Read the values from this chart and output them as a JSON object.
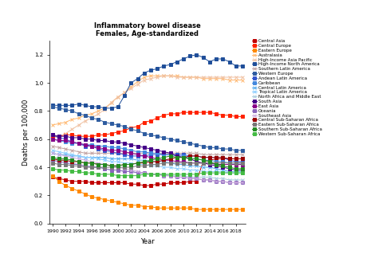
{
  "title_line1": "Inflammatory bowel disease",
  "title_line2": "Females, Age-standardized",
  "ylabel": "Deaths per 100,000",
  "xlabel": "Year",
  "years": [
    1990,
    1991,
    1992,
    1993,
    1994,
    1995,
    1996,
    1997,
    1998,
    1999,
    2000,
    2001,
    2002,
    2003,
    2004,
    2005,
    2006,
    2007,
    2008,
    2009,
    2010,
    2011,
    2012,
    2013,
    2014,
    2015,
    2016,
    2017,
    2018,
    2019
  ],
  "series": [
    {
      "name": "Central Asia",
      "color": "#c00000",
      "marker": "s",
      "values": [
        0.33,
        0.32,
        0.31,
        0.3,
        0.3,
        0.3,
        0.29,
        0.29,
        0.29,
        0.29,
        0.29,
        0.29,
        0.28,
        0.28,
        0.27,
        0.27,
        0.28,
        0.28,
        0.29,
        0.29,
        0.29,
        0.3,
        0.3,
        0.44,
        0.45,
        0.46,
        0.46,
        0.46,
        0.46,
        0.46
      ]
    },
    {
      "name": "Central Europe",
      "color": "#ff2200",
      "marker": "s",
      "values": [
        0.62,
        0.62,
        0.63,
        0.63,
        0.62,
        0.62,
        0.62,
        0.63,
        0.63,
        0.64,
        0.65,
        0.66,
        0.68,
        0.69,
        0.72,
        0.73,
        0.75,
        0.77,
        0.78,
        0.78,
        0.79,
        0.79,
        0.79,
        0.79,
        0.79,
        0.78,
        0.77,
        0.77,
        0.76,
        0.76
      ]
    },
    {
      "name": "Eastern Europe",
      "color": "#ff8800",
      "marker": "s",
      "values": [
        0.34,
        0.3,
        0.27,
        0.25,
        0.23,
        0.21,
        0.19,
        0.18,
        0.17,
        0.16,
        0.15,
        0.14,
        0.13,
        0.13,
        0.12,
        0.12,
        0.11,
        0.11,
        0.11,
        0.11,
        0.11,
        0.11,
        0.1,
        0.1,
        0.1,
        0.1,
        0.1,
        0.1,
        0.1,
        0.1
      ]
    },
    {
      "name": "Australasia",
      "color": "#ffb870",
      "marker": "x",
      "values": [
        0.7,
        0.71,
        0.72,
        0.74,
        0.75,
        0.77,
        0.78,
        0.8,
        0.82,
        0.86,
        0.9,
        0.93,
        0.97,
        1.01,
        1.04,
        1.05,
        1.05,
        1.05,
        1.05,
        1.05,
        1.04,
        1.04,
        1.04,
        1.03,
        1.03,
        1.03,
        1.03,
        1.02,
        1.02,
        1.02
      ]
    },
    {
      "name": "High-Income Asia Pacific",
      "color": "#f0c0a0",
      "marker": "x",
      "values": [
        0.6,
        0.62,
        0.64,
        0.67,
        0.7,
        0.73,
        0.75,
        0.78,
        0.81,
        0.86,
        0.9,
        0.93,
        0.96,
        0.99,
        1.02,
        1.03,
        1.04,
        1.05,
        1.05,
        1.04,
        1.04,
        1.04,
        1.04,
        1.04,
        1.04,
        1.04,
        1.04,
        1.04,
        1.04,
        1.04
      ]
    },
    {
      "name": "High-Income North America",
      "color": "#1f4e99",
      "marker": "s",
      "values": [
        0.84,
        0.84,
        0.84,
        0.84,
        0.85,
        0.84,
        0.83,
        0.83,
        0.82,
        0.82,
        0.83,
        0.91,
        1.0,
        1.03,
        1.07,
        1.09,
        1.1,
        1.12,
        1.13,
        1.15,
        1.17,
        1.19,
        1.2,
        1.18,
        1.15,
        1.17,
        1.17,
        1.15,
        1.12,
        1.12
      ]
    },
    {
      "name": "Southern Latin America",
      "color": "#c0a0a0",
      "marker": "x",
      "values": [
        0.55,
        0.54,
        0.53,
        0.52,
        0.51,
        0.5,
        0.5,
        0.5,
        0.5,
        0.5,
        0.5,
        0.5,
        0.5,
        0.5,
        0.5,
        0.5,
        0.5,
        0.5,
        0.5,
        0.5,
        0.5,
        0.5,
        0.5,
        0.49,
        0.49,
        0.49,
        0.49,
        0.49,
        0.49,
        0.49
      ]
    },
    {
      "name": "Western Europe",
      "color": "#2e5ca0",
      "marker": "s",
      "values": [
        0.83,
        0.82,
        0.81,
        0.8,
        0.78,
        0.77,
        0.75,
        0.74,
        0.72,
        0.71,
        0.7,
        0.69,
        0.67,
        0.66,
        0.64,
        0.63,
        0.62,
        0.61,
        0.6,
        0.59,
        0.58,
        0.57,
        0.56,
        0.55,
        0.54,
        0.54,
        0.53,
        0.53,
        0.52,
        0.52
      ]
    },
    {
      "name": "Andean Latin America",
      "color": "#3355cc",
      "marker": "s",
      "values": [
        0.63,
        0.61,
        0.6,
        0.58,
        0.57,
        0.55,
        0.55,
        0.53,
        0.52,
        0.51,
        0.5,
        0.49,
        0.48,
        0.48,
        0.48,
        0.49,
        0.49,
        0.49,
        0.49,
        0.49,
        0.49,
        0.48,
        0.48,
        0.47,
        0.47,
        0.47,
        0.47,
        0.45,
        0.44,
        0.44
      ]
    },
    {
      "name": "Caribbean",
      "color": "#4488dd",
      "marker": "s",
      "values": [
        0.6,
        0.59,
        0.58,
        0.57,
        0.57,
        0.56,
        0.56,
        0.55,
        0.55,
        0.54,
        0.54,
        0.53,
        0.52,
        0.51,
        0.51,
        0.5,
        0.5,
        0.49,
        0.49,
        0.48,
        0.48,
        0.46,
        0.46,
        0.45,
        0.45,
        0.44,
        0.44,
        0.43,
        0.43,
        0.43
      ]
    },
    {
      "name": "Central Latin America",
      "color": "#55aaee",
      "marker": "x",
      "values": [
        0.5,
        0.49,
        0.49,
        0.48,
        0.48,
        0.47,
        0.47,
        0.47,
        0.47,
        0.46,
        0.46,
        0.46,
        0.46,
        0.45,
        0.45,
        0.44,
        0.44,
        0.44,
        0.43,
        0.42,
        0.42,
        0.41,
        0.41,
        0.4,
        0.4,
        0.39,
        0.38,
        0.37,
        0.37,
        0.37
      ]
    },
    {
      "name": "Tropical Latin America",
      "color": "#88ccff",
      "marker": "x",
      "values": [
        0.52,
        0.51,
        0.5,
        0.49,
        0.48,
        0.47,
        0.47,
        0.46,
        0.45,
        0.44,
        0.44,
        0.43,
        0.43,
        0.42,
        0.42,
        0.41,
        0.41,
        0.4,
        0.4,
        0.39,
        0.39,
        0.38,
        0.38,
        0.37,
        0.37,
        0.37,
        0.37,
        0.36,
        0.36,
        0.36
      ]
    },
    {
      "name": "North Africa and Middle East",
      "color": "#aaccdd",
      "marker": "x",
      "values": [
        0.46,
        0.45,
        0.44,
        0.43,
        0.42,
        0.41,
        0.41,
        0.4,
        0.39,
        0.38,
        0.38,
        0.37,
        0.37,
        0.36,
        0.36,
        0.35,
        0.35,
        0.35,
        0.34,
        0.34,
        0.34,
        0.33,
        0.33,
        0.33,
        0.33,
        0.32,
        0.32,
        0.31,
        0.31,
        0.31
      ]
    },
    {
      "name": "South Asia",
      "color": "#440088",
      "marker": "s",
      "values": [
        0.63,
        0.62,
        0.62,
        0.61,
        0.61,
        0.6,
        0.6,
        0.59,
        0.59,
        0.58,
        0.58,
        0.57,
        0.56,
        0.55,
        0.54,
        0.53,
        0.52,
        0.51,
        0.5,
        0.48,
        0.47,
        0.46,
        0.44,
        0.43,
        0.42,
        0.41,
        0.4,
        0.39,
        0.38,
        0.38
      ]
    },
    {
      "name": "East Asia",
      "color": "#880088",
      "marker": "s",
      "values": [
        0.6,
        0.59,
        0.59,
        0.58,
        0.57,
        0.56,
        0.55,
        0.54,
        0.53,
        0.52,
        0.52,
        0.51,
        0.5,
        0.49,
        0.48,
        0.47,
        0.46,
        0.45,
        0.45,
        0.44,
        0.44,
        0.43,
        0.43,
        0.43,
        0.43,
        0.42,
        0.42,
        0.42,
        0.42,
        0.42
      ]
    },
    {
      "name": "Oceania",
      "color": "#8866bb",
      "marker": "s",
      "values": [
        0.45,
        0.44,
        0.43,
        0.42,
        0.42,
        0.41,
        0.4,
        0.4,
        0.39,
        0.38,
        0.38,
        0.37,
        0.37,
        0.36,
        0.36,
        0.35,
        0.35,
        0.34,
        0.34,
        0.33,
        0.33,
        0.32,
        0.32,
        0.31,
        0.31,
        0.3,
        0.3,
        0.29,
        0.29,
        0.29
      ]
    },
    {
      "name": "Southeast Asia",
      "color": "#ccaadd",
      "marker": "x",
      "values": [
        0.5,
        0.49,
        0.48,
        0.47,
        0.46,
        0.45,
        0.44,
        0.43,
        0.42,
        0.41,
        0.4,
        0.39,
        0.38,
        0.37,
        0.36,
        0.35,
        0.35,
        0.34,
        0.34,
        0.33,
        0.33,
        0.32,
        0.32,
        0.31,
        0.31,
        0.3,
        0.3,
        0.29,
        0.29,
        0.29
      ]
    },
    {
      "name": "Central Sub-Saharan Africa",
      "color": "#990000",
      "marker": "s",
      "values": [
        0.46,
        0.45,
        0.45,
        0.44,
        0.44,
        0.43,
        0.43,
        0.42,
        0.42,
        0.41,
        0.41,
        0.42,
        0.42,
        0.43,
        0.43,
        0.44,
        0.44,
        0.45,
        0.46,
        0.47,
        0.47,
        0.48,
        0.48,
        0.47,
        0.47,
        0.47,
        0.47,
        0.46,
        0.46,
        0.46
      ]
    },
    {
      "name": "Eastern Sub-Saharan Africa",
      "color": "#777777",
      "marker": "s",
      "values": [
        0.43,
        0.42,
        0.42,
        0.41,
        0.41,
        0.4,
        0.4,
        0.4,
        0.4,
        0.4,
        0.4,
        0.4,
        0.4,
        0.41,
        0.41,
        0.42,
        0.42,
        0.43,
        0.43,
        0.43,
        0.43,
        0.43,
        0.43,
        0.43,
        0.43,
        0.43,
        0.43,
        0.43,
        0.43,
        0.43
      ]
    },
    {
      "name": "Southern Sub-Saharan Africa",
      "color": "#228b22",
      "marker": "s",
      "values": [
        0.47,
        0.46,
        0.46,
        0.45,
        0.44,
        0.43,
        0.43,
        0.42,
        0.42,
        0.41,
        0.41,
        0.42,
        0.42,
        0.43,
        0.44,
        0.45,
        0.46,
        0.47,
        0.48,
        0.47,
        0.47,
        0.46,
        0.46,
        0.45,
        0.44,
        0.42,
        0.41,
        0.4,
        0.39,
        0.39
      ]
    },
    {
      "name": "Western Sub-Saharan Africa",
      "color": "#44bb44",
      "marker": "s",
      "values": [
        0.39,
        0.38,
        0.38,
        0.37,
        0.37,
        0.36,
        0.36,
        0.35,
        0.35,
        0.35,
        0.34,
        0.34,
        0.34,
        0.34,
        0.35,
        0.35,
        0.35,
        0.35,
        0.35,
        0.35,
        0.35,
        0.35,
        0.35,
        0.36,
        0.36,
        0.36,
        0.36,
        0.36,
        0.36,
        0.36
      ]
    }
  ]
}
